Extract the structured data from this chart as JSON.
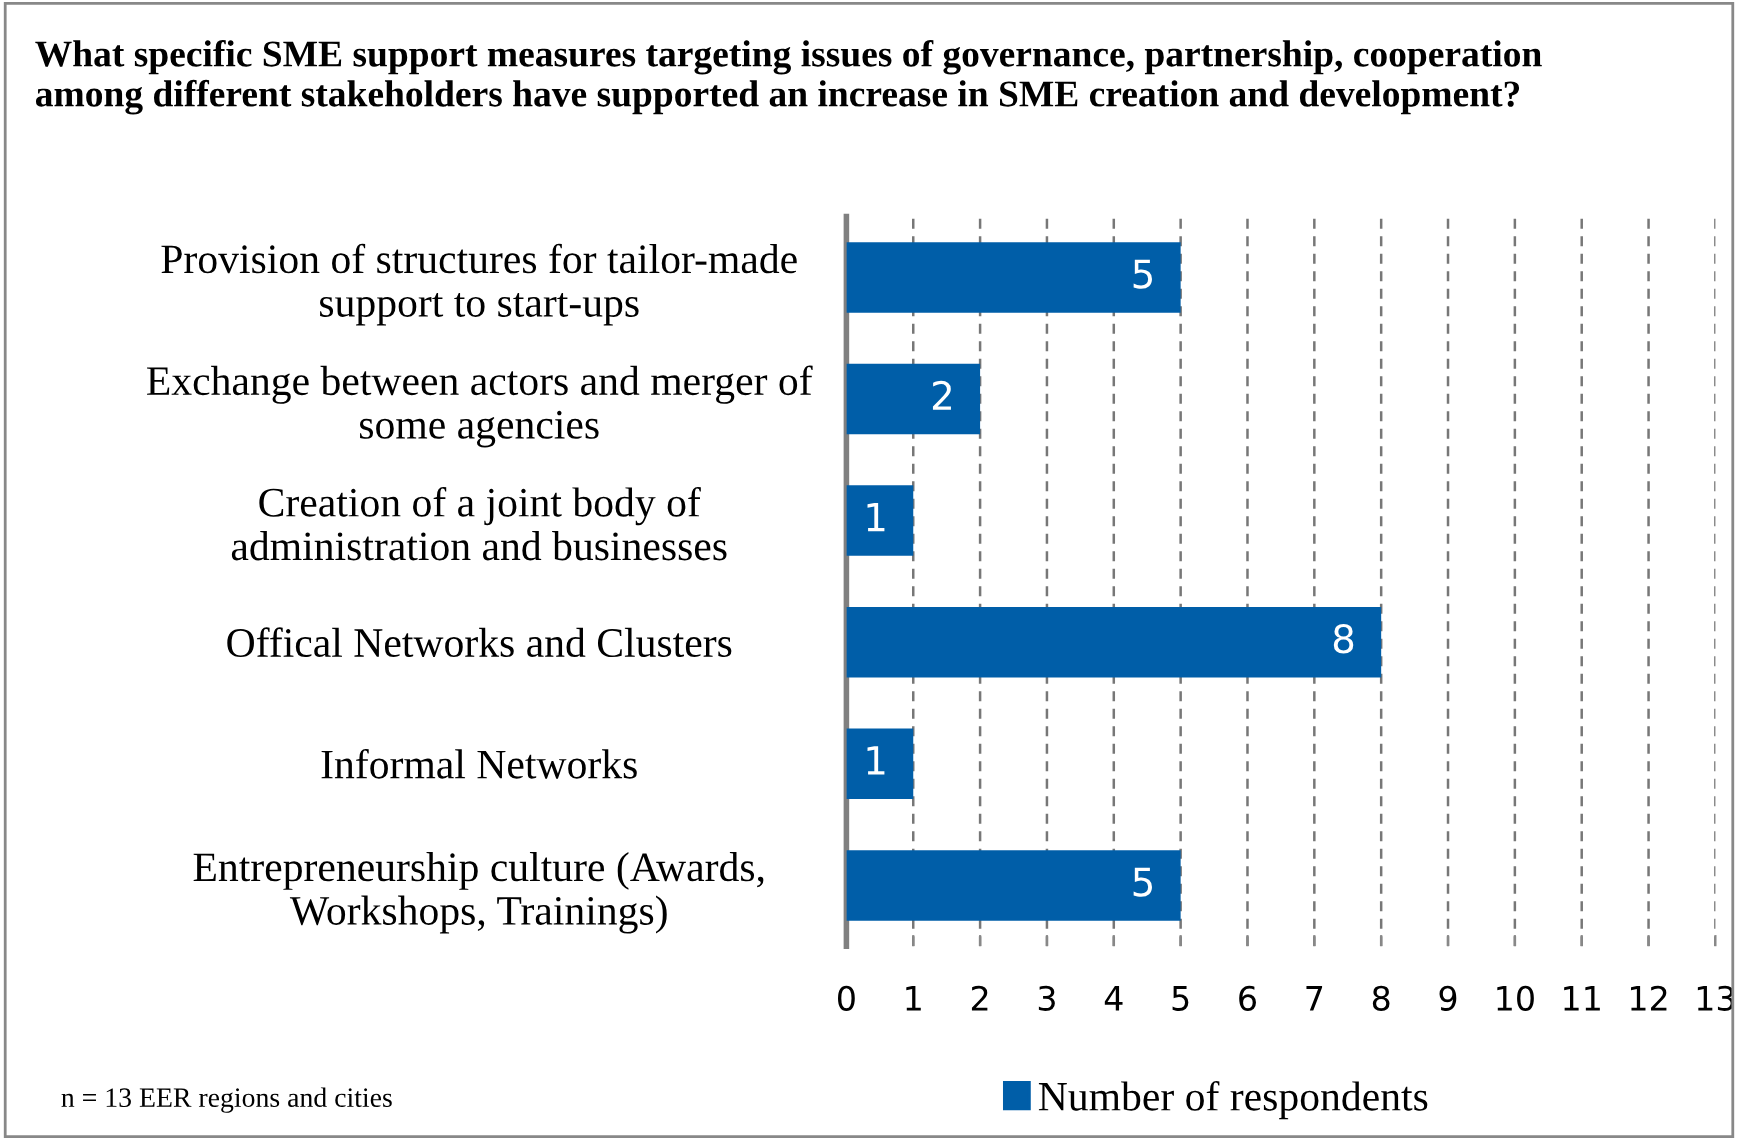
{
  "chart_data": {
    "type": "bar",
    "orientation": "horizontal",
    "title": "What specific SME support measures targeting issues of governance, partnership, cooperation\namong different stakeholders have supported an increase in SME creation and development?",
    "categories": [
      "Provision of structures for tailor-made\nsupport to start-ups",
      "Exchange between actors and merger of\nsome agencies",
      "Creation of a joint body of\nadministration and businesses",
      "Offical Networks and Clusters",
      "Informal Networks",
      "Entrepreneurship culture (Awards,\nWorkshops, Trainings)"
    ],
    "series": [
      {
        "name": "Number of respondents",
        "color": "#005ea8",
        "values": [
          5,
          2,
          1,
          8,
          1,
          5
        ]
      }
    ],
    "xlim": [
      0,
      13
    ],
    "xticks": [
      0,
      1,
      2,
      3,
      4,
      5,
      6,
      7,
      8,
      9,
      10,
      11,
      12,
      13
    ],
    "grid": "x",
    "legend": "bottom",
    "data_labels": true,
    "annotations": [
      "n = 13 EER regions and cities"
    ]
  }
}
